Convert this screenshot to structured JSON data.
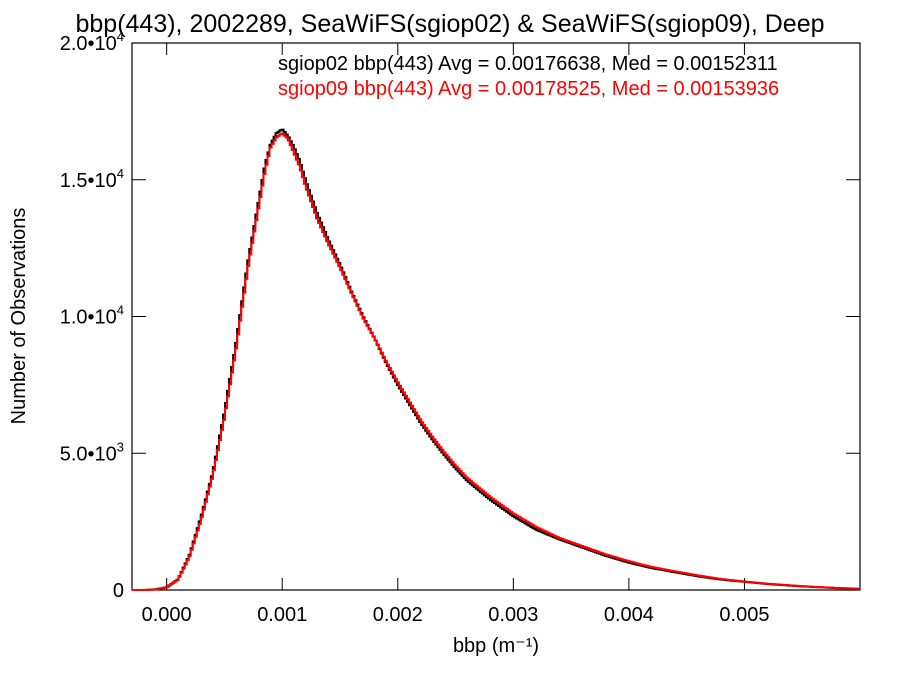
{
  "chart_data": {
    "type": "line",
    "title": "bbp(443), 2002289, SeaWiFS(sgiop02) & SeaWiFS(sgiop09), Deep",
    "xlabel": "bbp (m⁻¹)",
    "ylabel": "Number of Observations",
    "xlim": [
      -0.0003,
      0.006
    ],
    "ylim": [
      0,
      20000
    ],
    "xticks": [
      0.0,
      0.001,
      0.002,
      0.003,
      0.004,
      0.005
    ],
    "xtick_labels": [
      "0.000",
      "0.001",
      "0.002",
      "0.003",
      "0.004",
      "0.005"
    ],
    "yticks": [
      0,
      5000,
      10000,
      15000,
      20000
    ],
    "ytick_labels": [
      {
        "base": "0",
        "exp": ""
      },
      {
        "base": "5.0•10",
        "exp": "3"
      },
      {
        "base": "1.0•10",
        "exp": "4"
      },
      {
        "base": "1.5•10",
        "exp": "4"
      },
      {
        "base": "2.0•10",
        "exp": "4"
      }
    ],
    "grid": false,
    "legend": "top-right",
    "annotations": [
      {
        "text": "sgiop02 bbp(443) Avg = 0.00176638, Med = 0.00152311",
        "color": "#000000"
      },
      {
        "text": "sgiop09 bbp(443) Avg = 0.00178525, Med = 0.00153936",
        "color": "#ff0000"
      }
    ],
    "series": [
      {
        "color": "#000000",
        "x": [
          -0.0003,
          -0.0002,
          -0.0001,
          0.0,
          0.0001,
          0.0002,
          0.0003,
          0.0004,
          0.0005,
          0.0006,
          0.0007,
          0.0008,
          0.00085,
          0.0009,
          0.00095,
          0.001,
          0.00105,
          0.0011,
          0.00115,
          0.0012,
          0.0013,
          0.0014,
          0.0015,
          0.0016,
          0.0017,
          0.0018,
          0.0019,
          0.002,
          0.0021,
          0.0022,
          0.0023,
          0.0024,
          0.0025,
          0.0026,
          0.0028,
          0.003,
          0.0032,
          0.0034,
          0.0036,
          0.0038,
          0.004,
          0.0042,
          0.0044,
          0.0046,
          0.0048,
          0.005,
          0.0052,
          0.0054,
          0.0056,
          0.0058,
          0.006
        ],
        "y": [
          0,
          0,
          20,
          100,
          400,
          1300,
          2700,
          4300,
          6500,
          9000,
          11900,
          14300,
          15500,
          16300,
          16700,
          16850,
          16600,
          16200,
          15700,
          15000,
          13800,
          12800,
          11900,
          10900,
          10000,
          9200,
          8300,
          7500,
          6800,
          6100,
          5500,
          4950,
          4450,
          4000,
          3300,
          2700,
          2200,
          1850,
          1550,
          1250,
          1000,
          800,
          650,
          500,
          380,
          300,
          220,
          160,
          110,
          70,
          40
        ]
      },
      {
        "color": "#ff0000",
        "x": [
          -0.0003,
          -0.0002,
          -0.0001,
          0.0,
          0.0001,
          0.0002,
          0.0003,
          0.0004,
          0.0005,
          0.0006,
          0.0007,
          0.0008,
          0.00085,
          0.0009,
          0.00095,
          0.001,
          0.00105,
          0.0011,
          0.00115,
          0.0012,
          0.0013,
          0.0014,
          0.0015,
          0.0016,
          0.0017,
          0.0018,
          0.0019,
          0.002,
          0.0021,
          0.0022,
          0.0023,
          0.0024,
          0.0025,
          0.0026,
          0.0028,
          0.003,
          0.0032,
          0.0034,
          0.0036,
          0.0038,
          0.004,
          0.0042,
          0.0044,
          0.0046,
          0.0048,
          0.005,
          0.0052,
          0.0054,
          0.0056,
          0.0058,
          0.006
        ],
        "y": [
          0,
          0,
          15,
          90,
          380,
          1250,
          2600,
          4200,
          6300,
          8800,
          11700,
          14100,
          15300,
          16200,
          16550,
          16700,
          16500,
          16000,
          15500,
          14800,
          13600,
          12650,
          11800,
          10850,
          9950,
          9200,
          8350,
          7600,
          6900,
          6200,
          5600,
          5050,
          4550,
          4100,
          3400,
          2800,
          2300,
          1900,
          1600,
          1300,
          1050,
          840,
          680,
          530,
          400,
          310,
          230,
          170,
          115,
          75,
          45
        ]
      }
    ]
  }
}
